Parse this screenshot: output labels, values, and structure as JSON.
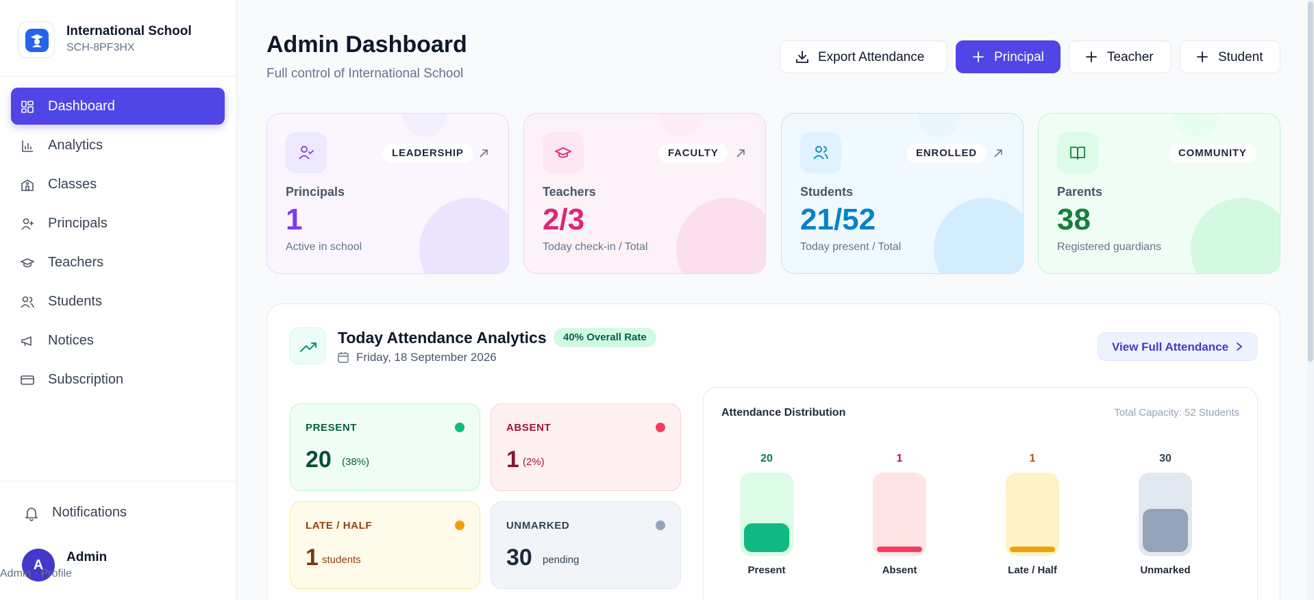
{
  "brand": {
    "name": "International School",
    "code": "SCH-8PF3HX"
  },
  "sidebar": {
    "items": [
      {
        "label": "Dashboard",
        "icon": "dashboard-icon",
        "active": true
      },
      {
        "label": "Analytics",
        "icon": "bar-chart-icon"
      },
      {
        "label": "Classes",
        "icon": "school-building-icon"
      },
      {
        "label": "Principals",
        "icon": "user-plus-icon"
      },
      {
        "label": "Teachers",
        "icon": "graduation-cap-icon"
      },
      {
        "label": "Students",
        "icon": "users-icon"
      },
      {
        "label": "Notices",
        "icon": "megaphone-icon"
      },
      {
        "label": "Subscription",
        "icon": "credit-card-icon"
      }
    ],
    "notifications_label": "Notifications",
    "user": {
      "initial": "A",
      "name": "Admin",
      "sub": "Admin · Profile"
    }
  },
  "header": {
    "title": "Admin Dashboard",
    "subtitle": "Full control of International School",
    "buttons": {
      "export": "Export Attendance",
      "principal": "Principal",
      "teacher": "Teacher",
      "student": "Student"
    }
  },
  "stats": [
    {
      "tag": "LEADERSHIP",
      "label": "Principals",
      "value": "1",
      "note": "Active in school",
      "accent": "#7c3aed"
    },
    {
      "tag": "FACULTY",
      "label": "Teachers",
      "value": "2/3",
      "note": "Today check-in / Total",
      "accent": "#db2777"
    },
    {
      "tag": "ENROLLED",
      "label": "Students",
      "value": "21/52",
      "note": "Today present / Total",
      "accent": "#0284c7"
    },
    {
      "tag": "COMMUNITY",
      "label": "Parents",
      "value": "38",
      "note": "Registered guardians",
      "accent": "#15803d"
    }
  ],
  "analytics": {
    "title": "Today Attendance Analytics",
    "rate_badge": "40% Overall Rate",
    "date": "Friday, 18 September 2026",
    "view_button": "View Full Attendance",
    "cards": {
      "present": {
        "title": "PRESENT",
        "value": "20",
        "sub": "(38%)"
      },
      "absent": {
        "title": "ABSENT",
        "value": "1",
        "sub": "(2%)"
      },
      "late": {
        "title": "LATE / HALF",
        "value": "1",
        "sub": "students"
      },
      "unmarked": {
        "title": "UNMARKED",
        "value": "30",
        "sub": "pending"
      }
    },
    "distribution": {
      "title": "Attendance Distribution",
      "capacity": "Total Capacity: 52 Students",
      "total": 52,
      "bars": [
        {
          "label": "Present",
          "value": 20,
          "value_label": "20",
          "color": "#10b981",
          "track": "#dcfce7",
          "text": "#047857"
        },
        {
          "label": "Absent",
          "value": 1,
          "value_label": "1",
          "color": "#f43f5e",
          "track": "#ffe4e6",
          "text": "#be123c"
        },
        {
          "label": "Late / Half",
          "value": 1,
          "value_label": "1",
          "color": "#f59e0b",
          "track": "#fef3c7",
          "text": "#b45309"
        },
        {
          "label": "Unmarked",
          "value": 30,
          "value_label": "30",
          "color": "#94a3b8",
          "track": "#e2e8f0",
          "text": "#334155"
        }
      ]
    }
  }
}
